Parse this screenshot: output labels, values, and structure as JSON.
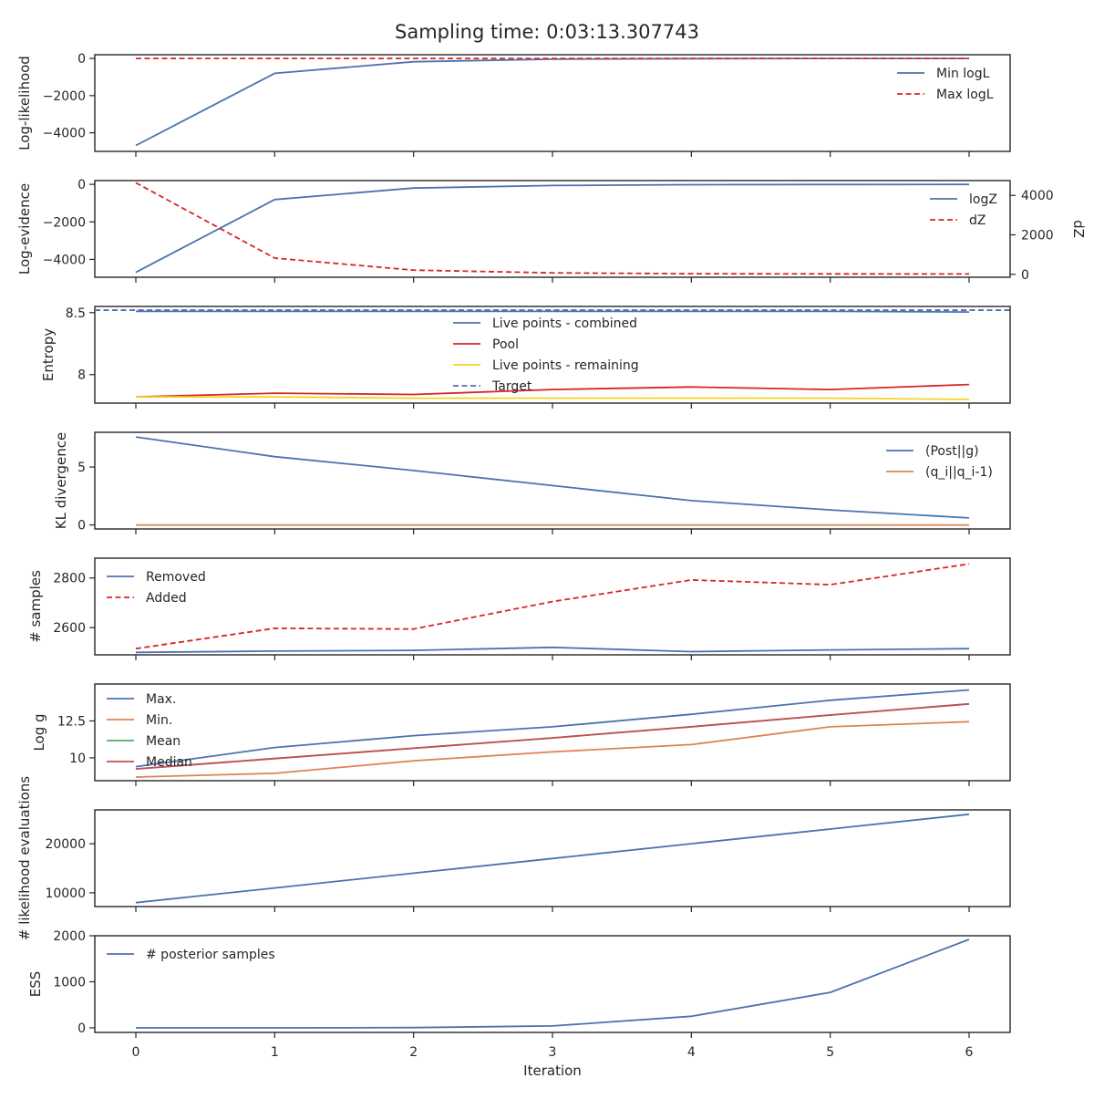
{
  "figure": {
    "title": "Sampling time: 0:03:13.307743",
    "xlabel": "Iteration",
    "x_ticks": [
      0,
      1,
      2,
      3,
      4,
      5,
      6
    ]
  },
  "chart_data": [
    {
      "type": "line",
      "ylabel": "Log-likelihood",
      "x": [
        0,
        1,
        2,
        3,
        4,
        5,
        6
      ],
      "ylim": [
        -5000,
        200
      ],
      "yticks": [
        0,
        -2000,
        -4000
      ],
      "legend_position": "top-right",
      "series": [
        {
          "name": "Min logL",
          "color": "#4c72b0",
          "dash": "solid",
          "values": [
            -4680,
            -800,
            -180,
            -40,
            -10,
            -3,
            -1
          ]
        },
        {
          "name": "Max logL",
          "color": "#d62728",
          "dash": "dashed",
          "values": [
            0,
            0,
            0,
            0,
            0,
            0,
            0
          ]
        }
      ]
    },
    {
      "type": "line",
      "ylabel": "Log-evidence",
      "ylabel_right": "dZ",
      "x": [
        0,
        1,
        2,
        3,
        4,
        5,
        6
      ],
      "ylim": [
        -4950,
        200
      ],
      "yticks": [
        0,
        -2000,
        -4000
      ],
      "ylim_right": [
        -150,
        4750
      ],
      "yticks_right": [
        0,
        2000,
        4000
      ],
      "legend_position": "top-right",
      "series": [
        {
          "name": "logZ",
          "color": "#4c72b0",
          "dash": "solid",
          "axis": "left",
          "values": [
            -4690,
            -810,
            -200,
            -60,
            -20,
            -10,
            -5
          ]
        },
        {
          "name": "dZ",
          "color": "#d62728",
          "dash": "dashed",
          "axis": "right",
          "values": [
            4640,
            820,
            210,
            70,
            30,
            20,
            15
          ]
        }
      ]
    },
    {
      "type": "line",
      "ylabel": "Entropy",
      "x": [
        0,
        1,
        2,
        3,
        4,
        5,
        6
      ],
      "ylim": [
        7.77,
        8.55
      ],
      "yticks": [
        8.5,
        8.0
      ],
      "legend_position": "top-center",
      "series": [
        {
          "name": "Live points - combined",
          "color": "#4c72b0",
          "dash": "solid",
          "values": [
            8.51,
            8.51,
            8.51,
            8.51,
            8.51,
            8.51,
            8.505
          ]
        },
        {
          "name": "Pool",
          "color": "#d62728",
          "dash": "solid",
          "values": [
            7.82,
            7.85,
            7.84,
            7.88,
            7.9,
            7.88,
            7.92
          ]
        },
        {
          "name": "Live points - remaining",
          "color": "#f5d327",
          "dash": "solid",
          "values": [
            7.82,
            7.82,
            7.81,
            7.81,
            7.81,
            7.81,
            7.8
          ]
        },
        {
          "name": "Target",
          "color": "#4c72b0",
          "dash": "dashed",
          "span": "full",
          "values": [
            8.52,
            8.52,
            8.52,
            8.52,
            8.52,
            8.52,
            8.52
          ]
        }
      ]
    },
    {
      "type": "line",
      "ylabel": "KL divergence",
      "x": [
        0,
        1,
        2,
        3,
        4,
        5,
        6
      ],
      "ylim": [
        -0.35,
        8.0
      ],
      "yticks": [
        5,
        0
      ],
      "legend_position": "top-right",
      "series": [
        {
          "name": "(Post||g)",
          "color": "#4c72b0",
          "dash": "solid",
          "values": [
            7.6,
            5.9,
            4.7,
            3.4,
            2.1,
            1.3,
            0.6
          ]
        },
        {
          "name": "(q_i||q_i-1)",
          "color": "#dd8452",
          "dash": "solid",
          "values": [
            0.0,
            0.0,
            0.0,
            0.0,
            0.0,
            0.0,
            0.0
          ]
        }
      ]
    },
    {
      "type": "line",
      "ylabel": "# samples",
      "x": [
        0,
        1,
        2,
        3,
        4,
        5,
        6
      ],
      "ylim": [
        2490,
        2880
      ],
      "yticks": [
        2800,
        2600
      ],
      "legend_position": "top-left",
      "series": [
        {
          "name": "Removed",
          "color": "#4c72b0",
          "dash": "solid",
          "values": [
            2500,
            2505,
            2508,
            2520,
            2503,
            2510,
            2515
          ]
        },
        {
          "name": "Added",
          "color": "#d62728",
          "dash": "dashed",
          "values": [
            2515,
            2597,
            2594,
            2705,
            2792,
            2773,
            2857
          ]
        }
      ]
    },
    {
      "type": "line",
      "ylabel": "Log g",
      "x": [
        0,
        1,
        2,
        3,
        4,
        5,
        6
      ],
      "ylim": [
        8.45,
        15.0
      ],
      "yticks": [
        12.5,
        10.0
      ],
      "legend_position": "top-left",
      "series": [
        {
          "name": "Max.",
          "color": "#4c72b0",
          "dash": "solid",
          "values": [
            9.4,
            10.7,
            11.5,
            12.1,
            12.95,
            13.9,
            14.6
          ]
        },
        {
          "name": "Min.",
          "color": "#dd8452",
          "dash": "solid",
          "values": [
            8.7,
            8.95,
            9.8,
            10.4,
            10.9,
            12.1,
            12.45
          ]
        },
        {
          "name": "Mean",
          "color": "#55a868",
          "dash": "solid",
          "values": [
            9.25,
            9.95,
            10.65,
            11.35,
            12.1,
            12.9,
            13.65
          ]
        },
        {
          "name": "Median",
          "color": "#c44e52",
          "dash": "solid",
          "values": [
            9.25,
            9.95,
            10.65,
            11.35,
            12.1,
            12.9,
            13.65
          ]
        }
      ]
    },
    {
      "type": "line",
      "ylabel": "# likelihood evaluations",
      "x": [
        0,
        1,
        2,
        3,
        4,
        5,
        6
      ],
      "ylim": [
        7200,
        26900
      ],
      "yticks": [
        20000,
        10000
      ],
      "series": [
        {
          "name": "",
          "color": "#4c72b0",
          "dash": "solid",
          "values": [
            8000,
            11000,
            14000,
            17000,
            20000,
            23000,
            26000
          ]
        }
      ]
    },
    {
      "type": "line",
      "ylabel": "ESS",
      "x": [
        0,
        1,
        2,
        3,
        4,
        5,
        6
      ],
      "ylim": [
        -100,
        2000
      ],
      "yticks": [
        2000,
        1000,
        0
      ],
      "legend_position": "top-left",
      "series": [
        {
          "name": "# posterior samples",
          "color": "#4c72b0",
          "dash": "solid",
          "values": [
            0,
            0,
            5,
            40,
            250,
            770,
            1920
          ]
        }
      ]
    }
  ]
}
